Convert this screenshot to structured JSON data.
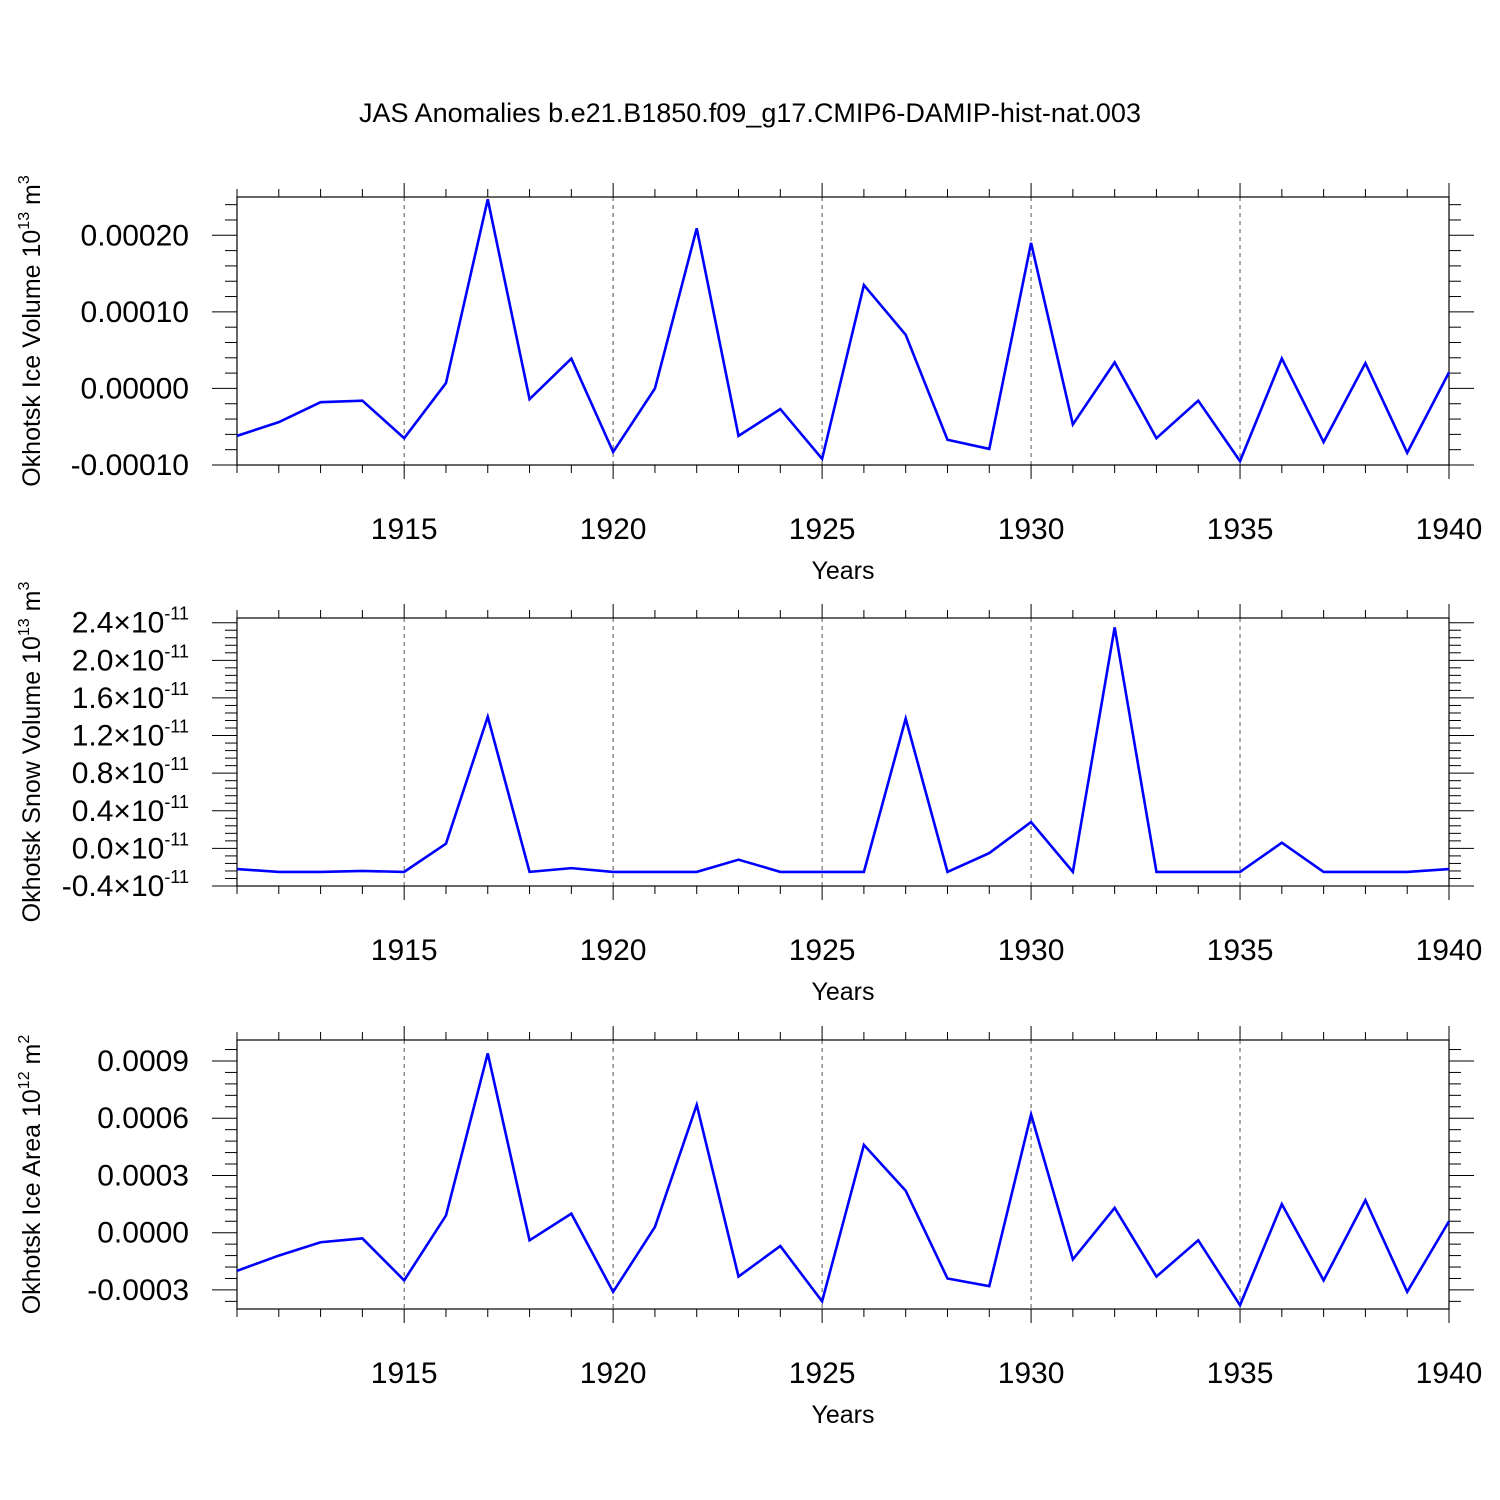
{
  "title": "JAS Anomalies b.e21.B1850.f09_g17.CMIP6-DAMIP-hist-nat.003",
  "colors": {
    "line": "#0000ff",
    "axis": "#000000",
    "grid": "#555555"
  },
  "chart_data": [
    {
      "type": "line",
      "ylabel": "Okhotsk Ice Volume 10",
      "ylabel_exp": "13",
      "ylabel_unit": " m",
      "ylabel_unit_exp": "3",
      "xlabel": "Years",
      "xlim": [
        1911,
        1940
      ],
      "ylim": [
        -0.0001,
        0.00025
      ],
      "grid": "x-dashed",
      "x_ticks": [
        {
          "value": 1915,
          "label": "1915"
        },
        {
          "value": 1920,
          "label": "1920"
        },
        {
          "value": 1925,
          "label": "1925"
        },
        {
          "value": 1930,
          "label": "1930"
        },
        {
          "value": 1935,
          "label": "1935"
        },
        {
          "value": 1940,
          "label": "1940"
        }
      ],
      "y_ticks": [
        {
          "value": -0.0001,
          "label": "-0.00010"
        },
        {
          "value": 0.0,
          "label": "0.00000"
        },
        {
          "value": 0.0001,
          "label": "0.00010"
        },
        {
          "value": 0.0002,
          "label": "0.00020"
        }
      ],
      "x": [
        1911,
        1912,
        1913,
        1914,
        1915,
        1916,
        1917,
        1918,
        1919,
        1920,
        1921,
        1922,
        1923,
        1924,
        1925,
        1926,
        1927,
        1928,
        1929,
        1930,
        1931,
        1932,
        1933,
        1934,
        1935,
        1936,
        1937,
        1938,
        1939,
        1940
      ],
      "series": [
        {
          "values": [
            -6.2e-05,
            -4.4e-05,
            -1.8e-05,
            -1.6e-05,
            -6.5e-05,
            7e-06,
            0.000247,
            -1.4e-05,
            3.9e-05,
            -8.3e-05,
            0.0,
            0.000209,
            -6.2e-05,
            -2.7e-05,
            -9.2e-05,
            0.000135,
            7e-05,
            -6.7e-05,
            -7.9e-05,
            0.00019,
            -4.7e-05,
            3.4e-05,
            -6.5e-05,
            -1.6e-05,
            -9.5e-05,
            3.9e-05,
            -7e-05,
            3.3e-05,
            -8.4e-05,
            2.1e-05
          ]
        }
      ]
    },
    {
      "type": "line",
      "ylabel": "Okhotsk Snow Volume 10",
      "ylabel_exp": "13",
      "ylabel_unit": " m",
      "ylabel_unit_exp": "3",
      "xlabel": "Years",
      "xlim": [
        1911,
        1940
      ],
      "ylim": [
        -4e-12,
        2.45e-11
      ],
      "grid": "x-dashed",
      "x_ticks": [
        {
          "value": 1915,
          "label": "1915"
        },
        {
          "value": 1920,
          "label": "1920"
        },
        {
          "value": 1925,
          "label": "1925"
        },
        {
          "value": 1930,
          "label": "1930"
        },
        {
          "value": 1935,
          "label": "1935"
        },
        {
          "value": 1940,
          "label": "1940"
        }
      ],
      "y_ticks": [
        {
          "value": -4e-12,
          "label": "-0.4",
          "times": "×10",
          "exp": "-11"
        },
        {
          "value": 0.0,
          "label": "0.0",
          "times": "×10",
          "exp": "-11"
        },
        {
          "value": 4e-12,
          "label": "0.4",
          "times": "×10",
          "exp": "-11"
        },
        {
          "value": 8e-12,
          "label": "0.8",
          "times": "×10",
          "exp": "-11"
        },
        {
          "value": 1.2e-11,
          "label": "1.2",
          "times": "×10",
          "exp": "-11"
        },
        {
          "value": 1.6e-11,
          "label": "1.6",
          "times": "×10",
          "exp": "-11"
        },
        {
          "value": 2e-11,
          "label": "2.0",
          "times": "×10",
          "exp": "-11"
        },
        {
          "value": 2.4e-11,
          "label": "2.4",
          "times": "×10",
          "exp": "-11"
        }
      ],
      "x": [
        1911,
        1912,
        1913,
        1914,
        1915,
        1916,
        1917,
        1918,
        1919,
        1920,
        1921,
        1922,
        1923,
        1924,
        1925,
        1926,
        1927,
        1928,
        1929,
        1930,
        1931,
        1932,
        1933,
        1934,
        1935,
        1936,
        1937,
        1938,
        1939,
        1940
      ],
      "series": [
        {
          "values": [
            -2.2e-12,
            -2.5e-12,
            -2.5e-12,
            -2.4e-12,
            -2.5e-12,
            5e-13,
            1.4e-11,
            -2.5e-12,
            -2.1e-12,
            -2.5e-12,
            -2.5e-12,
            -2.5e-12,
            -1.2e-12,
            -2.5e-12,
            -2.5e-12,
            -2.5e-12,
            1.38e-11,
            -2.5e-12,
            -5e-13,
            2.8e-12,
            -2.5e-12,
            2.35e-11,
            -2.5e-12,
            -2.5e-12,
            -2.5e-12,
            6e-13,
            -2.5e-12,
            -2.5e-12,
            -2.5e-12,
            -2.2e-12
          ]
        }
      ]
    },
    {
      "type": "line",
      "ylabel": "Okhotsk Ice Area 10",
      "ylabel_exp": "12",
      "ylabel_unit": " m",
      "ylabel_unit_exp": "2",
      "xlabel": "Years",
      "xlim": [
        1911,
        1940
      ],
      "ylim": [
        -0.0004,
        0.00101
      ],
      "grid": "x-dashed",
      "x_ticks": [
        {
          "value": 1915,
          "label": "1915"
        },
        {
          "value": 1920,
          "label": "1920"
        },
        {
          "value": 1925,
          "label": "1925"
        },
        {
          "value": 1930,
          "label": "1930"
        },
        {
          "value": 1935,
          "label": "1935"
        },
        {
          "value": 1940,
          "label": "1940"
        }
      ],
      "y_ticks": [
        {
          "value": -0.0003,
          "label": "-0.0003"
        },
        {
          "value": 0.0,
          "label": "0.0000"
        },
        {
          "value": 0.0003,
          "label": "0.0003"
        },
        {
          "value": 0.0006,
          "label": "0.0006"
        },
        {
          "value": 0.0009,
          "label": "0.0009"
        }
      ],
      "x": [
        1911,
        1912,
        1913,
        1914,
        1915,
        1916,
        1917,
        1918,
        1919,
        1920,
        1921,
        1922,
        1923,
        1924,
        1925,
        1926,
        1927,
        1928,
        1929,
        1930,
        1931,
        1932,
        1933,
        1934,
        1935,
        1936,
        1937,
        1938,
        1939,
        1940
      ],
      "series": [
        {
          "values": [
            -0.0002,
            -0.00012,
            -5e-05,
            -3e-05,
            -0.00025,
            9e-05,
            0.00094,
            -4e-05,
            0.0001,
            -0.00031,
            3e-05,
            0.00067,
            -0.00023,
            -7e-05,
            -0.00036,
            0.00046,
            0.00022,
            -0.00024,
            -0.00028,
            0.00062,
            -0.00014,
            0.00013,
            -0.00023,
            -4e-05,
            -0.00038,
            0.00015,
            -0.00025,
            0.00017,
            -0.00031,
            6e-05
          ]
        }
      ]
    }
  ]
}
